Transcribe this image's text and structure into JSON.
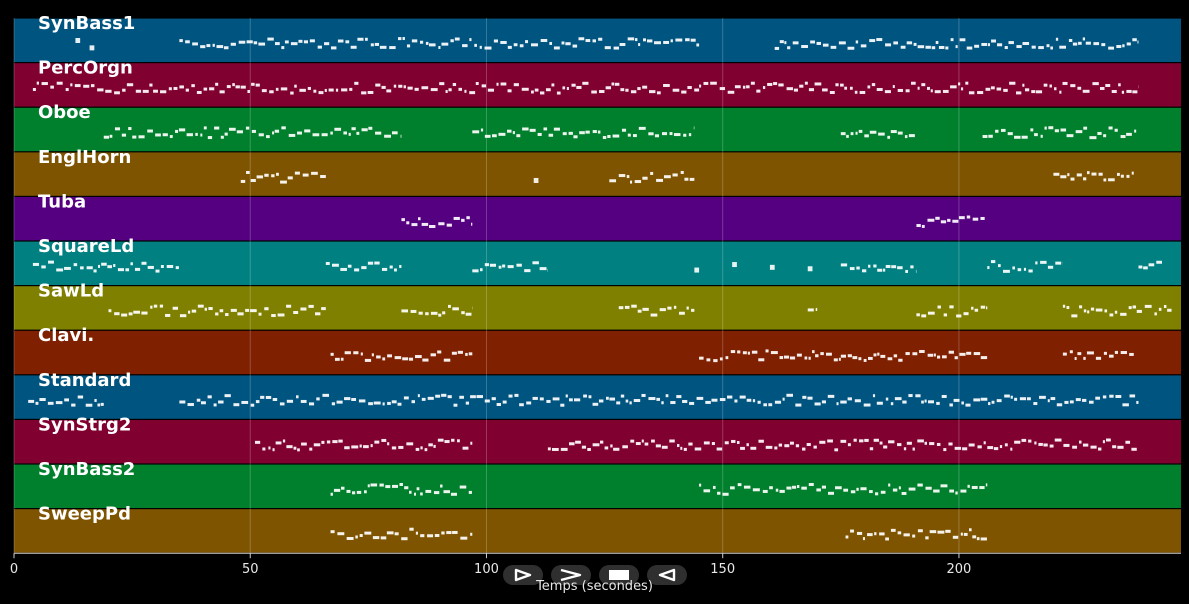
{
  "chart_data": {
    "type": "piano-roll",
    "xlabel": "Temps (secondes)",
    "xlim": [
      0,
      247
    ],
    "xticks": [
      0,
      50,
      100,
      150,
      200
    ],
    "grid": true,
    "tracks": [
      {
        "name": "SynBass1",
        "color": "#005480",
        "segments": [
          [
            13,
            14
          ],
          [
            16,
            17
          ],
          [
            35,
            145
          ],
          [
            161,
            238
          ]
        ]
      },
      {
        "name": "PercOrgn",
        "color": "#800030",
        "segments": [
          [
            4,
            35
          ],
          [
            35,
            145
          ],
          [
            145,
            238
          ]
        ]
      },
      {
        "name": "Oboe",
        "color": "#00802c",
        "segments": [
          [
            19,
            82
          ],
          [
            97,
            144
          ],
          [
            175,
            191
          ],
          [
            205,
            238
          ]
        ]
      },
      {
        "name": "EnglHorn",
        "color": "#7f5400",
        "segments": [
          [
            48,
            66
          ],
          [
            110,
            111
          ],
          [
            126,
            144
          ],
          [
            220,
            237
          ]
        ]
      },
      {
        "name": "Tuba",
        "color": "#540080",
        "segments": [
          [
            82,
            97
          ],
          [
            191,
            206
          ]
        ]
      },
      {
        "name": "SquareLd",
        "color": "#008080",
        "segments": [
          [
            4,
            35
          ],
          [
            66,
            82
          ],
          [
            97,
            113
          ],
          [
            144,
            145
          ],
          [
            152,
            153
          ],
          [
            160,
            161
          ],
          [
            168,
            169
          ],
          [
            175,
            191
          ],
          [
            206,
            222
          ],
          [
            238,
            243
          ]
        ]
      },
      {
        "name": "SawLd",
        "color": "#7f8000",
        "segments": [
          [
            20,
            66
          ],
          [
            82,
            97
          ],
          [
            128,
            144
          ],
          [
            168,
            170
          ],
          [
            191,
            206
          ],
          [
            222,
            245
          ]
        ]
      },
      {
        "name": "Clavi.",
        "color": "#7f2000",
        "segments": [
          [
            67,
            97
          ],
          [
            145,
            175
          ],
          [
            175,
            206
          ],
          [
            222,
            237
          ]
        ]
      },
      {
        "name": "Standard",
        "color": "#005480",
        "segments": [
          [
            3,
            19
          ],
          [
            35,
            238
          ]
        ]
      },
      {
        "name": "SynStrg2",
        "color": "#800030",
        "segments": [
          [
            51,
            97
          ],
          [
            113,
            206
          ],
          [
            206,
            238
          ]
        ]
      },
      {
        "name": "SynBass2",
        "color": "#00802c",
        "segments": [
          [
            67,
            97
          ],
          [
            145,
            206
          ]
        ]
      },
      {
        "name": "SweepPd",
        "color": "#7f5400",
        "segments": [
          [
            67,
            97
          ],
          [
            176,
            206
          ]
        ]
      }
    ]
  },
  "controls": [
    {
      "name": "play-button",
      "icon": "play-icon"
    },
    {
      "name": "fast-forward-button",
      "icon": "fast-forward-icon"
    },
    {
      "name": "stop-button",
      "icon": "stop-icon"
    },
    {
      "name": "rewind-button",
      "icon": "rewind-icon"
    }
  ]
}
